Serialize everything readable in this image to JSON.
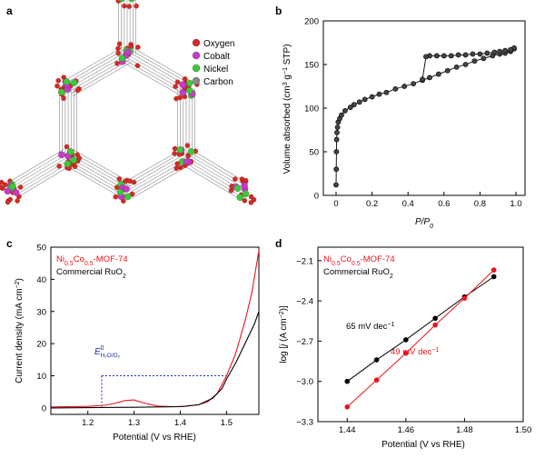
{
  "panels": {
    "a": {
      "letter": "a",
      "legend": [
        {
          "label": "Oxygen",
          "color": "#d42a24"
        },
        {
          "label": "Cobalt",
          "color": "#c63ac9"
        },
        {
          "label": "Nickel",
          "color": "#3cc83c"
        },
        {
          "label": "Carbon",
          "color": "#8a8a8a"
        }
      ]
    },
    "b": {
      "letter": "b"
    },
    "c": {
      "letter": "c"
    },
    "d": {
      "letter": "d"
    }
  },
  "chart_data": [
    {
      "panel": "b",
      "type": "scatter",
      "xlabel": "P/P0",
      "ylabel": "Volume absorbed (cm3 g−1 STP)",
      "xlim": [
        0,
        1.0
      ],
      "ylim": [
        0,
        200
      ],
      "xticks": [
        "0",
        "0.2",
        "0.4",
        "0.6",
        "0.8",
        "1.0"
      ],
      "yticks": [
        "0",
        "50",
        "100",
        "150",
        "200"
      ],
      "series": [
        {
          "role": "adsorption",
          "x": [
            0.0,
            0.001,
            0.002,
            0.003,
            0.005,
            0.008,
            0.012,
            0.02,
            0.03,
            0.05,
            0.08,
            0.1,
            0.13,
            0.16,
            0.2,
            0.24,
            0.28,
            0.33,
            0.38,
            0.43,
            0.48,
            0.52,
            0.57,
            0.62,
            0.67,
            0.72,
            0.77,
            0.82,
            0.87,
            0.91,
            0.94,
            0.97,
            0.99
          ],
          "y": [
            12,
            30,
            50,
            64,
            72,
            78,
            84,
            88,
            92,
            97,
            101,
            104,
            107,
            110,
            113,
            116,
            118,
            122,
            125,
            128,
            132,
            135,
            139,
            143,
            147,
            150,
            154,
            157,
            160,
            162,
            163,
            165,
            168
          ]
        },
        {
          "role": "desorption",
          "x": [
            0.99,
            0.97,
            0.94,
            0.91,
            0.88,
            0.84,
            0.8,
            0.76,
            0.72,
            0.68,
            0.64,
            0.6,
            0.56,
            0.52,
            0.5,
            0.48
          ],
          "y": [
            169,
            167,
            166,
            165,
            164,
            163,
            162,
            162,
            161,
            161,
            160,
            160,
            160,
            160,
            159,
            133
          ]
        }
      ]
    },
    {
      "panel": "c",
      "type": "line",
      "xlabel": "Potential (V vs RHE)",
      "ylabel": "Current density (mA cm−2)",
      "xlim": [
        1.12,
        1.57
      ],
      "ylim": [
        -2,
        50
      ],
      "xticks": [
        "1.2",
        "1.3",
        "1.4",
        "1.5"
      ],
      "yticks": [
        "0",
        "10",
        "20",
        "30",
        "40",
        "50"
      ],
      "legend": [
        "Ni0.5Co0.5-MOF-74",
        "Commercial RuO2"
      ],
      "annotation": {
        "text": "E0 H2O/O2",
        "x": 1.23,
        "y": 10
      },
      "series": [
        {
          "name": "Ni0.5Co0.5-MOF-74",
          "color": "#e8141c",
          "x": [
            1.12,
            1.2,
            1.24,
            1.26,
            1.28,
            1.3,
            1.32,
            1.35,
            1.38,
            1.41,
            1.44,
            1.46,
            1.48,
            1.5,
            1.52,
            1.54,
            1.555,
            1.57
          ],
          "y": [
            0.3,
            0.5,
            0.9,
            1.5,
            2.3,
            2.5,
            1.6,
            0.6,
            0.4,
            0.5,
            1.0,
            2.0,
            4.5,
            10,
            17,
            27,
            36,
            49
          ]
        },
        {
          "name": "Commercial RuO2",
          "color": "#000000",
          "x": [
            1.12,
            1.2,
            1.3,
            1.4,
            1.44,
            1.47,
            1.49,
            1.5,
            1.52,
            1.54,
            1.56,
            1.57
          ],
          "y": [
            0,
            0.1,
            0.2,
            0.4,
            1.0,
            3.0,
            6.0,
            9.0,
            14,
            20,
            26,
            30
          ]
        }
      ]
    },
    {
      "panel": "d",
      "type": "line",
      "xlabel": "Potential (V vs RHE)",
      "ylabel": "log [j (A cm−2)]",
      "xlim": [
        1.43,
        1.5
      ],
      "ylim": [
        -3.3,
        -2.0
      ],
      "xticks": [
        "1.44",
        "1.46",
        "1.48",
        "1.50"
      ],
      "yticks": [
        "−2.1",
        "−2.4",
        "−2.7",
        "−3.0",
        "−3.3"
      ],
      "legend": [
        "Ni0.5Co0.5-MOF-74",
        "Commercial RuO2"
      ],
      "annotations": [
        "65 mV dec−1",
        "49 mV dec−1"
      ],
      "series": [
        {
          "name": "Commercial RuO2",
          "color": "#000000",
          "x": [
            1.44,
            1.45,
            1.46,
            1.47,
            1.48,
            1.49
          ],
          "y": [
            -3.0,
            -2.84,
            -2.69,
            -2.53,
            -2.37,
            -2.22
          ]
        },
        {
          "name": "Ni0.5Co0.5-MOF-74",
          "color": "#e8141c",
          "x": [
            1.44,
            1.45,
            1.46,
            1.47,
            1.48,
            1.49
          ],
          "y": [
            -3.19,
            -2.99,
            -2.79,
            -2.58,
            -2.38,
            -2.17
          ]
        }
      ]
    }
  ]
}
